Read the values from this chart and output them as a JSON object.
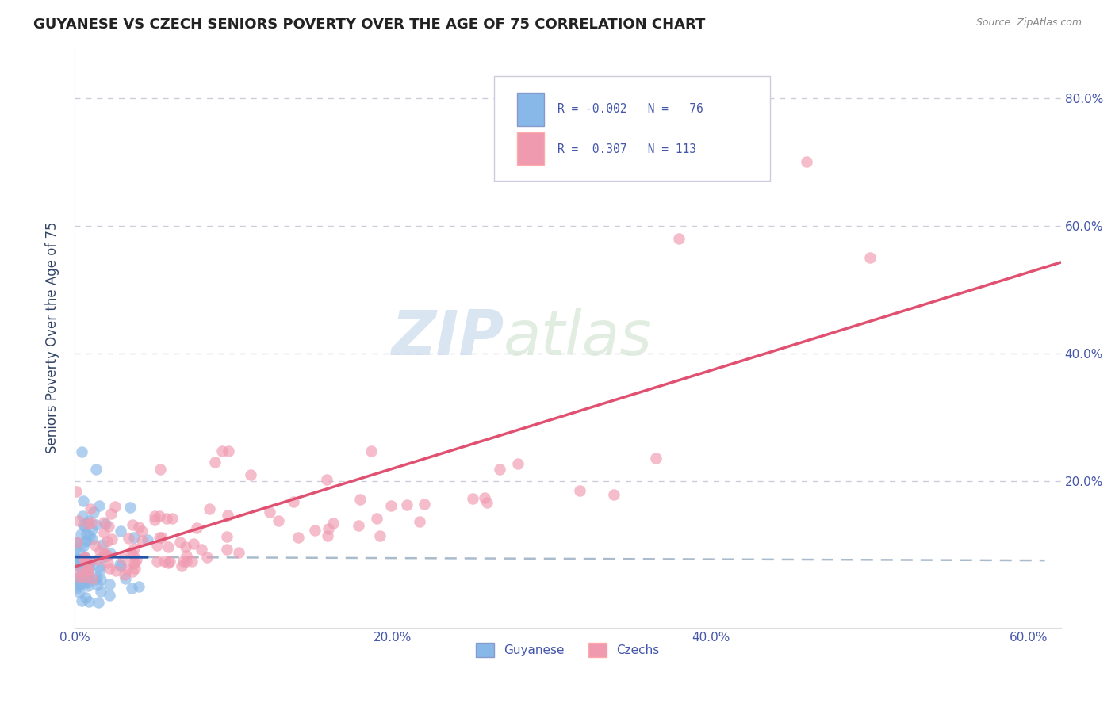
{
  "title": "GUYANESE VS CZECH SENIORS POVERTY OVER THE AGE OF 75 CORRELATION CHART",
  "source": "Source: ZipAtlas.com",
  "ylabel": "Seniors Poverty Over the Age of 75",
  "xlim": [
    0.0,
    0.62
  ],
  "ylim": [
    -0.03,
    0.88
  ],
  "xticks": [
    0.0,
    0.1,
    0.2,
    0.3,
    0.4,
    0.5,
    0.6
  ],
  "xticklabels": [
    "0.0%",
    "",
    "20.0%",
    "",
    "40.0%",
    "",
    "60.0%"
  ],
  "yticks": [
    0.0,
    0.2,
    0.4,
    0.6,
    0.8
  ],
  "yticklabels_right": [
    "",
    "20.0%",
    "40.0%",
    "60.0%",
    "80.0%"
  ],
  "guyanese_R": "-0.002",
  "guyanese_N": "76",
  "czechs_R": "0.307",
  "czechs_N": "113",
  "guyanese_color": "#88B8E8",
  "czechs_color": "#F09AB0",
  "guyanese_line_color": "#2255AA",
  "czechs_line_color": "#E05070",
  "dashed_line_color": "#AABBCC",
  "background_color": "#FFFFFF",
  "grid_color": "#CCCCDD",
  "title_color": "#222222",
  "axis_label_color": "#334466",
  "tick_color": "#4455AA",
  "source_color": "#888888"
}
